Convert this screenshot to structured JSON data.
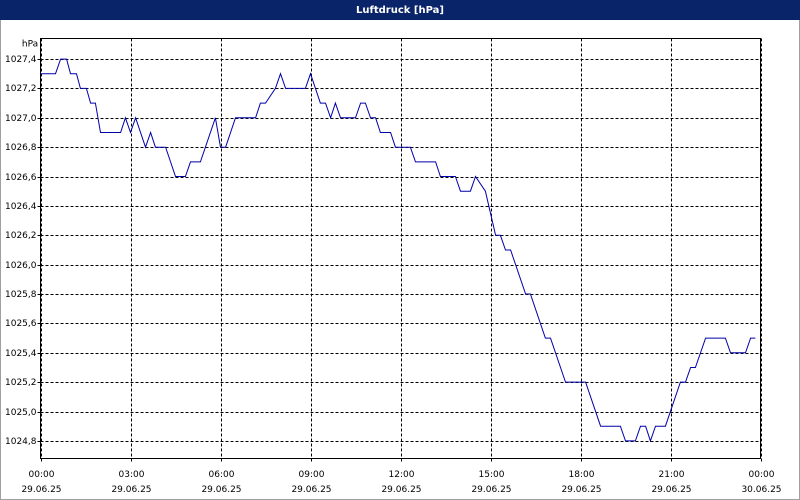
{
  "chart_data": {
    "type": "line",
    "title": "Luftdruck [hPa]",
    "y_unit": "hPa",
    "x": [
      0,
      0.5,
      0.67,
      0.87,
      1,
      1.2,
      1.33,
      1.53,
      1.67,
      1.83,
      2,
      2.67,
      2.83,
      3,
      3.17,
      3.5,
      3.67,
      3.83,
      4.17,
      4.5,
      4.83,
      5,
      5.33,
      5.83,
      6,
      6.17,
      6.5,
      7.17,
      7.33,
      7.5,
      7.83,
      8,
      8.17,
      8.83,
      9,
      9.33,
      9.5,
      9.67,
      9.83,
      10,
      10.5,
      10.67,
      10.83,
      11,
      11.17,
      11.33,
      11.67,
      11.83,
      12.33,
      12.5,
      13.17,
      13.33,
      13.83,
      14,
      14.33,
      14.5,
      14.83,
      15.17,
      15.33,
      15.5,
      15.67,
      16.17,
      16.33,
      16.83,
      17,
      17.5,
      18.17,
      18.67,
      19.33,
      19.5,
      19.83,
      20,
      20.17,
      20.33,
      20.5,
      20.83,
      21.33,
      21.5,
      21.67,
      21.83,
      22.17,
      22.83,
      23,
      23.5,
      23.67,
      23.83
    ],
    "values": [
      1027.3,
      1027.3,
      1027.4,
      1027.4,
      1027.3,
      1027.3,
      1027.2,
      1027.2,
      1027.1,
      1027.1,
      1026.9,
      1026.9,
      1027.0,
      1026.9,
      1027.0,
      1026.8,
      1026.9,
      1026.8,
      1026.8,
      1026.6,
      1026.6,
      1026.7,
      1026.7,
      1027.0,
      1026.8,
      1026.8,
      1027.0,
      1027.0,
      1027.1,
      1027.1,
      1027.2,
      1027.3,
      1027.2,
      1027.2,
      1027.3,
      1027.1,
      1027.1,
      1027.0,
      1027.1,
      1027.0,
      1027.0,
      1027.1,
      1027.1,
      1027.0,
      1027.0,
      1026.9,
      1026.9,
      1026.8,
      1026.8,
      1026.7,
      1026.7,
      1026.6,
      1026.6,
      1026.5,
      1026.5,
      1026.6,
      1026.5,
      1026.2,
      1026.2,
      1026.1,
      1026.1,
      1025.8,
      1025.8,
      1025.5,
      1025.5,
      1025.2,
      1025.2,
      1024.9,
      1024.9,
      1024.8,
      1024.8,
      1024.9,
      1024.9,
      1024.8,
      1024.9,
      1024.9,
      1025.2,
      1025.2,
      1025.3,
      1025.3,
      1025.5,
      1025.5,
      1025.4,
      1025.4,
      1025.5,
      1025.5
    ],
    "color": "#0000aa",
    "xlim": [
      0,
      24
    ],
    "xticks": [
      {
        "value": 0,
        "label": "00:00"
      },
      {
        "value": 3,
        "label": "03:00"
      },
      {
        "value": 6,
        "label": "06:00"
      },
      {
        "value": 9,
        "label": "09:00"
      },
      {
        "value": 12,
        "label": "12:00"
      },
      {
        "value": 15,
        "label": "15:00"
      },
      {
        "value": 18,
        "label": "18:00"
      },
      {
        "value": 21,
        "label": "21:00"
      },
      {
        "value": 24,
        "label": "00:00"
      }
    ],
    "xtick_dates": [
      "29.06.25",
      "29.06.25",
      "29.06.25",
      "29.06.25",
      "29.06.25",
      "29.06.25",
      "29.06.25",
      "29.06.25",
      "30.06.25"
    ],
    "ylim": [
      1024.68,
      1027.54
    ],
    "yticks": [
      {
        "value": 1024.8,
        "label": "1024,8"
      },
      {
        "value": 1025.0,
        "label": "1025,0"
      },
      {
        "value": 1025.2,
        "label": "1025,2"
      },
      {
        "value": 1025.4,
        "label": "1025,4"
      },
      {
        "value": 1025.6,
        "label": "1025,6"
      },
      {
        "value": 1025.8,
        "label": "1025,8"
      },
      {
        "value": 1026.0,
        "label": "1026,0"
      },
      {
        "value": 1026.2,
        "label": "1026,2"
      },
      {
        "value": 1026.4,
        "label": "1026,4"
      },
      {
        "value": 1026.6,
        "label": "1026,6"
      },
      {
        "value": 1026.8,
        "label": "1026,8"
      },
      {
        "value": 1027.0,
        "label": "1027,0"
      },
      {
        "value": 1027.2,
        "label": "1027,2"
      },
      {
        "value": 1027.4,
        "label": "1027,4"
      }
    ],
    "grid": true
  }
}
